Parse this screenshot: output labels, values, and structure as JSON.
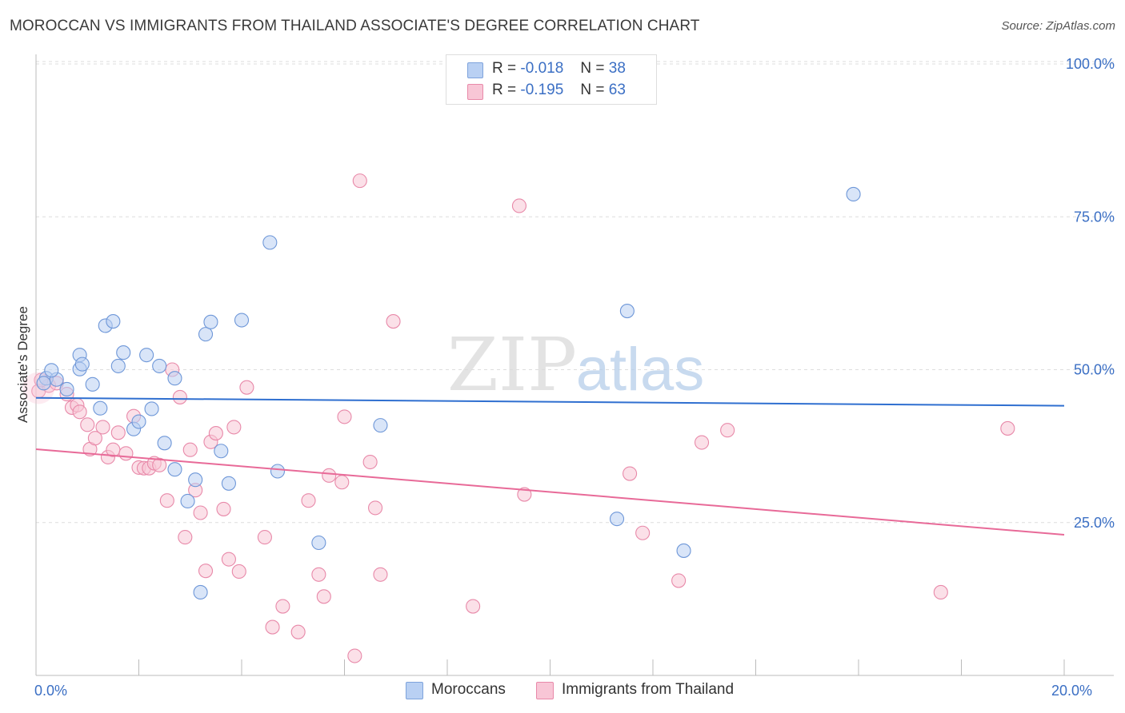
{
  "title": "MOROCCAN VS IMMIGRANTS FROM THAILAND ASSOCIATE'S DEGREE CORRELATION CHART",
  "source": "Source: ZipAtlas.com",
  "watermark": {
    "zip": "ZIP",
    "atlas": "atlas"
  },
  "colors": {
    "blue": "#3b6fc4",
    "blue_fill": "#b9d0f3",
    "blue_line": "#2f6fd0",
    "pink_fill": "#f8c6d6",
    "pink_stroke": "#e889a9",
    "pink_line": "#e86a98",
    "grid": "#dddddd"
  },
  "legend_top": {
    "moroccans": {
      "r_label": "R =",
      "r_value": "-0.018",
      "n_label": "N =",
      "n_value": "38"
    },
    "thailand": {
      "r_label": "R =",
      "r_value": "-0.195",
      "n_label": "N =",
      "n_value": "63"
    }
  },
  "legend_bottom": {
    "moroccans": "Moroccans",
    "thailand": "Immigrants from Thailand"
  },
  "chart_data": {
    "type": "scatter",
    "title": "MOROCCAN VS IMMIGRANTS FROM THAILAND ASSOCIATE'S DEGREE CORRELATION CHART",
    "xlabel": "",
    "ylabel": "Associate's Degree",
    "xlim": [
      0,
      20
    ],
    "ylim": [
      0,
      100
    ],
    "x_ticks": [
      {
        "value": 0,
        "label": "0.0%"
      },
      {
        "value": 20,
        "label": "20.0%"
      }
    ],
    "y_ticks": [
      {
        "value": 25,
        "label": "25.0%"
      },
      {
        "value": 50,
        "label": "50.0%"
      },
      {
        "value": 75,
        "label": "75.0%"
      },
      {
        "value": 100,
        "label": "100.0%"
      }
    ],
    "series": [
      {
        "name": "Moroccans",
        "color": "#3b6fc4",
        "trend": {
          "start": [
            0,
            45.4
          ],
          "end": [
            20,
            44.1
          ]
        },
        "points": [
          [
            0.2,
            48.6
          ],
          [
            0.4,
            48.4
          ],
          [
            0.3,
            49.9
          ],
          [
            0.6,
            46.8
          ],
          [
            0.85,
            52.4
          ],
          [
            0.85,
            50.1
          ],
          [
            0.9,
            50.9
          ],
          [
            1.1,
            47.6
          ],
          [
            1.25,
            43.7
          ],
          [
            1.35,
            57.2
          ],
          [
            1.5,
            57.9
          ],
          [
            1.6,
            50.6
          ],
          [
            1.7,
            52.8
          ],
          [
            1.9,
            40.3
          ],
          [
            2.0,
            41.5
          ],
          [
            2.15,
            52.4
          ],
          [
            2.25,
            43.6
          ],
          [
            2.4,
            50.6
          ],
          [
            2.5,
            38.0
          ],
          [
            2.7,
            48.6
          ],
          [
            2.7,
            33.7
          ],
          [
            2.95,
            28.5
          ],
          [
            3.1,
            32.0
          ],
          [
            3.2,
            13.6
          ],
          [
            3.3,
            55.8
          ],
          [
            3.4,
            57.8
          ],
          [
            3.6,
            36.7
          ],
          [
            3.75,
            31.4
          ],
          [
            4.0,
            58.1
          ],
          [
            4.55,
            70.8
          ],
          [
            4.7,
            33.4
          ],
          [
            5.5,
            21.7
          ],
          [
            6.7,
            40.9
          ],
          [
            11.5,
            59.6
          ],
          [
            11.3,
            25.6
          ],
          [
            12.6,
            20.4
          ],
          [
            15.9,
            78.7
          ],
          [
            0.15,
            47.8
          ]
        ]
      },
      {
        "name": "Immigrants from Thailand",
        "color": "#e889a9",
        "trend": {
          "start": [
            0,
            37.0
          ],
          "end": [
            20,
            23.0
          ]
        },
        "points": [
          [
            0.05,
            46.5
          ],
          [
            0.25,
            47.4
          ],
          [
            0.4,
            47.8
          ],
          [
            0.6,
            46.0
          ],
          [
            0.7,
            43.8
          ],
          [
            0.8,
            44.2
          ],
          [
            0.85,
            43.1
          ],
          [
            1.0,
            41.0
          ],
          [
            1.05,
            37.0
          ],
          [
            1.15,
            38.8
          ],
          [
            1.3,
            40.6
          ],
          [
            1.4,
            35.7
          ],
          [
            1.5,
            36.9
          ],
          [
            1.6,
            39.7
          ],
          [
            1.75,
            36.3
          ],
          [
            1.9,
            42.4
          ],
          [
            2.0,
            34.0
          ],
          [
            2.1,
            33.9
          ],
          [
            2.2,
            33.9
          ],
          [
            2.3,
            34.7
          ],
          [
            2.4,
            34.4
          ],
          [
            2.55,
            28.6
          ],
          [
            2.65,
            50.0
          ],
          [
            2.8,
            45.5
          ],
          [
            2.9,
            22.6
          ],
          [
            3.0,
            36.9
          ],
          [
            3.1,
            30.3
          ],
          [
            3.2,
            26.6
          ],
          [
            3.3,
            17.1
          ],
          [
            3.4,
            38.2
          ],
          [
            3.5,
            39.6
          ],
          [
            3.65,
            27.2
          ],
          [
            3.75,
            19.0
          ],
          [
            3.85,
            40.6
          ],
          [
            3.95,
            17.0
          ],
          [
            4.1,
            47.1
          ],
          [
            4.45,
            22.6
          ],
          [
            4.6,
            7.9
          ],
          [
            4.8,
            11.3
          ],
          [
            5.1,
            7.1
          ],
          [
            5.3,
            28.6
          ],
          [
            5.5,
            16.5
          ],
          [
            5.6,
            12.9
          ],
          [
            5.7,
            32.7
          ],
          [
            5.95,
            31.6
          ],
          [
            6.0,
            42.3
          ],
          [
            6.2,
            3.2
          ],
          [
            6.3,
            80.9
          ],
          [
            6.5,
            34.9
          ],
          [
            6.6,
            27.4
          ],
          [
            6.7,
            16.5
          ],
          [
            6.95,
            57.9
          ],
          [
            8.5,
            11.3
          ],
          [
            9.4,
            76.8
          ],
          [
            9.5,
            29.6
          ],
          [
            11.55,
            33.0
          ],
          [
            11.8,
            23.3
          ],
          [
            12.5,
            15.5
          ],
          [
            12.95,
            38.1
          ],
          [
            13.45,
            40.1
          ],
          [
            17.6,
            13.6
          ],
          [
            18.9,
            40.4
          ],
          [
            0.1,
            48.3
          ]
        ]
      }
    ]
  }
}
